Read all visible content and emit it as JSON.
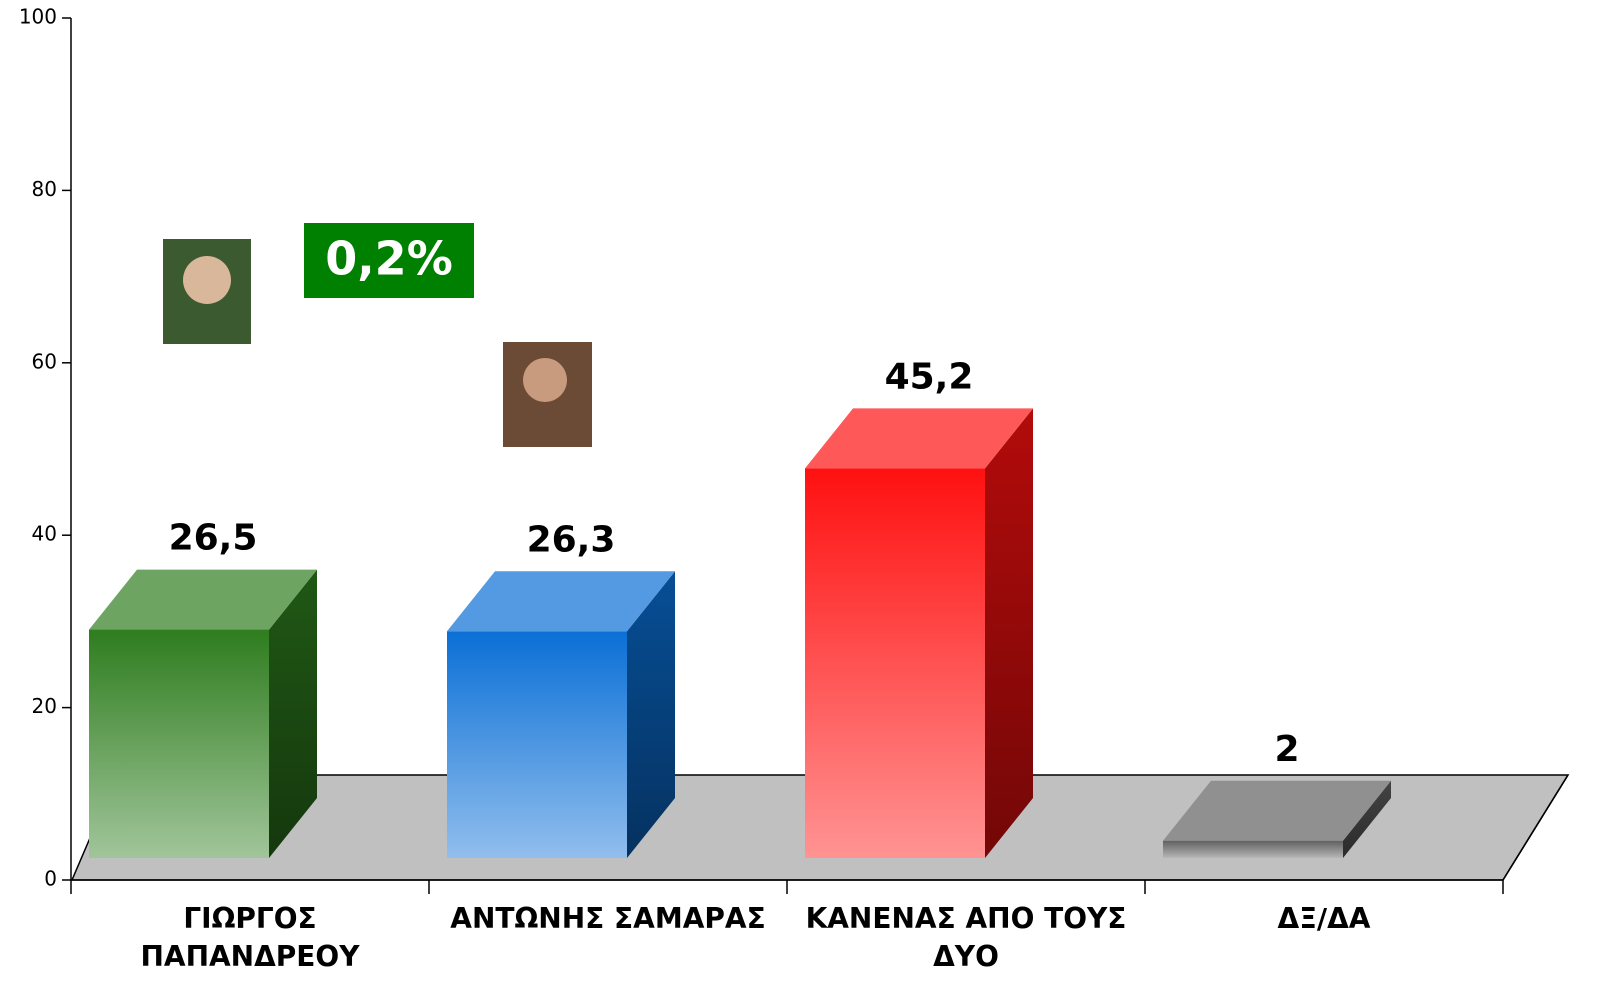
{
  "chart_data": {
    "type": "bar3d",
    "categories": [
      "ΓΙΩΡΓΟΣ\nΠΑΠΑΝΔΡΕΟΥ",
      "ΑΝΤΩΝΗΣ ΣΑΜΑΡΑΣ",
      "ΚΑΝΕΝΑΣ ΑΠΟ ΤΟΥΣ\nΔΥΟ",
      "ΔΞ/ΔΑ"
    ],
    "values": [
      26.5,
      26.3,
      45.2,
      2
    ],
    "value_labels": [
      "26,5",
      "26,3",
      "45,2",
      "2"
    ],
    "colors": [
      "#2e7d1e",
      "#0a6fd6",
      "#ff1010",
      "#606060"
    ],
    "ylim": [
      0,
      100
    ],
    "yticks": [
      0,
      20,
      40,
      60,
      80,
      100
    ],
    "annotation": "0,2%"
  }
}
